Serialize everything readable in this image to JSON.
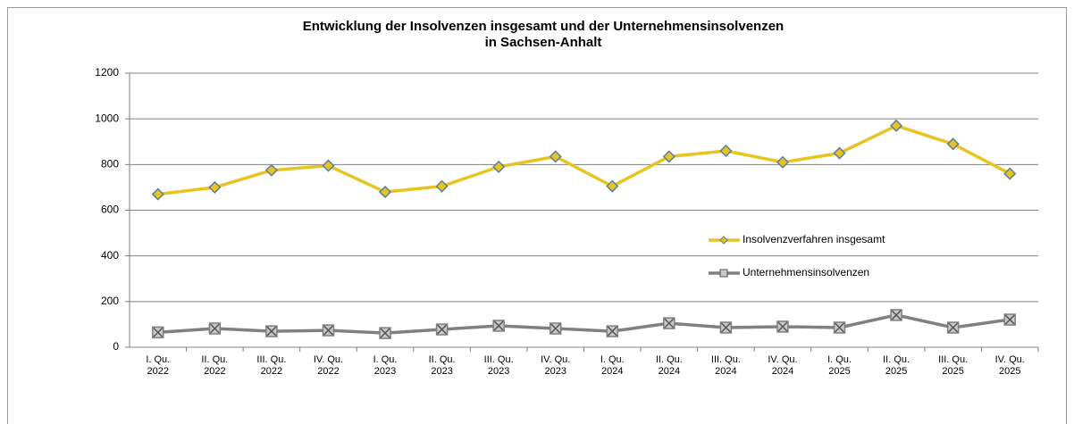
{
  "chart_data": {
    "type": "line",
    "title": [
      "Entwicklung der Insolvenzen insgesamt und der Unternehmensinsolvenzen",
      "in Sachsen-Anhalt"
    ],
    "categories": [
      "I. Qu. 2022",
      "II. Qu. 2022",
      "III. Qu. 2022",
      "IV. Qu. 2022",
      "I. Qu. 2023",
      "II. Qu. 2023",
      "III. Qu. 2023",
      "IV. Qu. 2023",
      "I. Qu. 2024",
      "II. Qu. 2024",
      "III. Qu. 2024",
      "IV. Qu. 2024",
      "I. Qu. 2025",
      "II. Qu. 2025",
      "III. Qu. 2025",
      "IV. Qu. 2025"
    ],
    "series": [
      {
        "name": "Insolvenzverfahren insgesamt",
        "color": "#e8c420",
        "marker": "diamond",
        "values": [
          670,
          700,
          775,
          795,
          680,
          705,
          790,
          835,
          705,
          835,
          860,
          810,
          850,
          970,
          890,
          760
        ]
      },
      {
        "name": "Unternehmensinsolvenzen",
        "color": "#808080",
        "marker": "square-x",
        "values": [
          65,
          82,
          70,
          74,
          62,
          78,
          94,
          82,
          70,
          105,
          86,
          90,
          86,
          141,
          86,
          121
        ]
      }
    ],
    "ylim": [
      0,
      1200
    ],
    "yticks": [
      0,
      200,
      400,
      600,
      800,
      1000,
      1200
    ],
    "grid": true
  }
}
